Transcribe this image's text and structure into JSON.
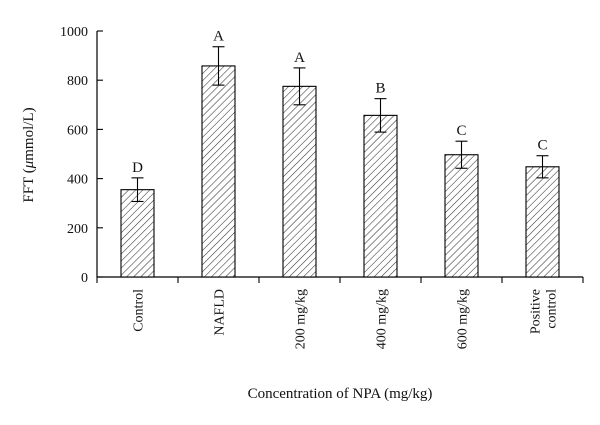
{
  "chart_data": {
    "type": "bar",
    "title": "",
    "ylabel_prefix": "FFT (",
    "ylabel_mu": "μ",
    "ylabel_suffix": "mmol/L)",
    "xlabel": "Concentration of NPA (mg/kg)",
    "ylim": [
      0,
      1000
    ],
    "yticks": [
      0,
      200,
      400,
      600,
      800,
      1000
    ],
    "categories": [
      [
        "Control"
      ],
      [
        "NAFLD"
      ],
      [
        "200 mg/kg"
      ],
      [
        "400 mg/kg"
      ],
      [
        "600 mg/kg"
      ],
      [
        "Positive",
        "control"
      ]
    ],
    "values": [
      355,
      858,
      775,
      657,
      497,
      448
    ],
    "errors": [
      48,
      78,
      75,
      68,
      55,
      45
    ],
    "letters": [
      "D",
      "A",
      "A",
      "B",
      "C",
      "C"
    ],
    "fill_pattern": "diagonal-hatch",
    "bar_stroke": "#000000",
    "grid": false
  }
}
